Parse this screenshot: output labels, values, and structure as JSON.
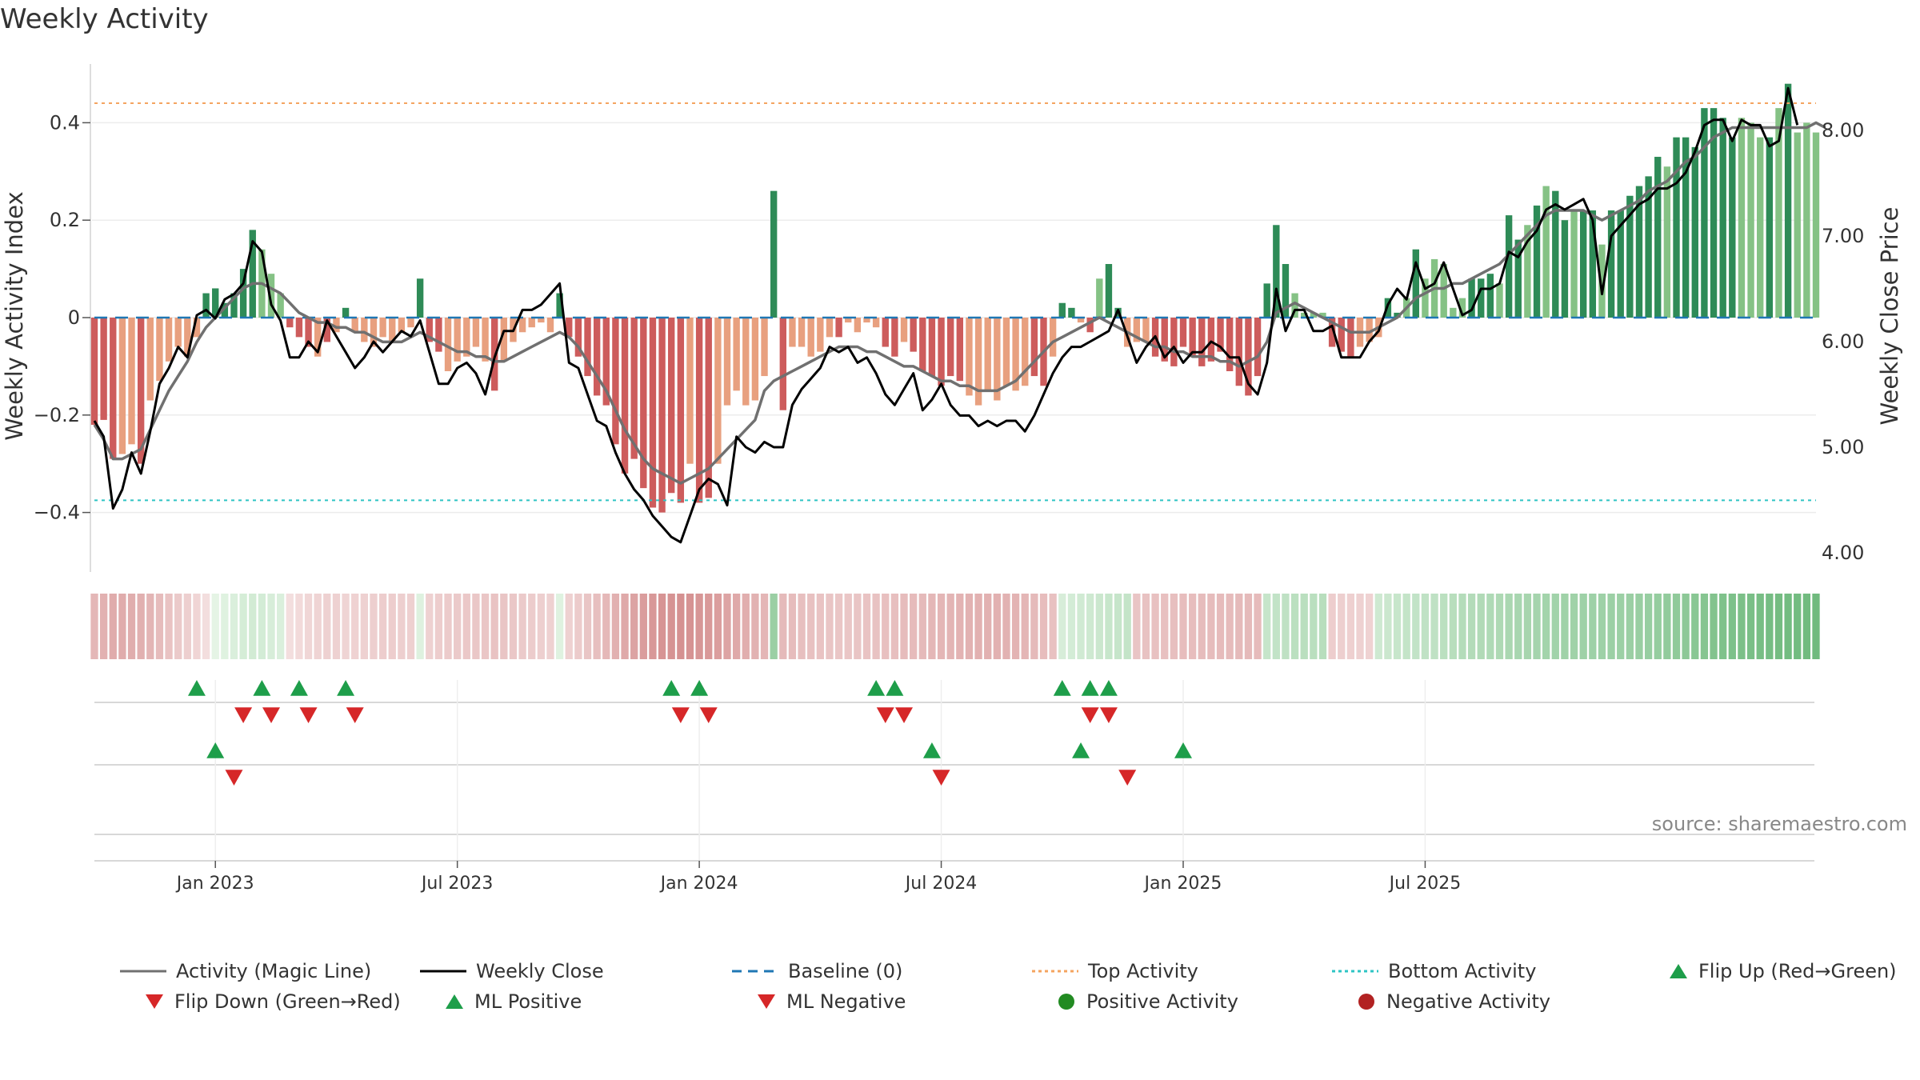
{
  "title": "Weekly Activity",
  "source": "source: sharemaestro.com",
  "colors": {
    "pos_strong": "#2e8b57",
    "pos_light": "#85c285",
    "neg_strong": "#cd5c5c",
    "neg_light": "#e8a07f",
    "magic_line": "#707070",
    "close_line": "#000000",
    "baseline": "#1f77b4",
    "top": "#f4a460",
    "bottom": "#2ec4c4",
    "up_marker": "#1e9e4a",
    "down_marker": "#d62728",
    "pos_dot": "#228b22",
    "neg_dot": "#b22222"
  },
  "chart_data": {
    "type": "bar",
    "title": "Weekly Activity",
    "ylabel": "Weekly Activity Index",
    "ylabel_right": "Weekly Close Price",
    "ylim": [
      -0.52,
      0.52
    ],
    "ylim_right": [
      3.85,
      8.6
    ],
    "yticks": [
      "0.4",
      "0.2",
      "0",
      "−0.2",
      "−0.4"
    ],
    "yticks_right": [
      "8.00",
      "7.00",
      "6.00",
      "5.00",
      "4.00"
    ],
    "top_activity": 0.44,
    "bottom_activity": -0.375,
    "baseline": 0,
    "x_labels": [
      "Jan 2023",
      "Jul 2023",
      "Jan 2024",
      "Jul 2024",
      "Jan 2025",
      "Jul 2025"
    ],
    "x_label_weeks": [
      13,
      39,
      65,
      91,
      117,
      143
    ],
    "activity": [
      -0.22,
      -0.21,
      -0.29,
      -0.28,
      -0.26,
      -0.3,
      -0.17,
      -0.13,
      -0.09,
      -0.06,
      -0.08,
      -0.04,
      0.05,
      0.06,
      0.03,
      0.05,
      0.1,
      0.18,
      0.14,
      0.09,
      0.05,
      -0.02,
      -0.04,
      -0.06,
      -0.08,
      -0.05,
      -0.03,
      0.02,
      -0.03,
      -0.05,
      -0.06,
      -0.04,
      -0.05,
      -0.03,
      -0.02,
      0.08,
      -0.05,
      -0.07,
      -0.11,
      -0.09,
      -0.08,
      -0.06,
      -0.09,
      -0.15,
      -0.09,
      -0.05,
      -0.03,
      -0.02,
      -0.01,
      -0.03,
      0.05,
      -0.04,
      -0.08,
      -0.12,
      -0.16,
      -0.18,
      -0.26,
      -0.32,
      -0.29,
      -0.35,
      -0.39,
      -0.4,
      -0.36,
      -0.38,
      -0.3,
      -0.38,
      -0.37,
      -0.3,
      -0.18,
      -0.15,
      -0.18,
      -0.17,
      -0.12,
      0.26,
      -0.19,
      -0.06,
      -0.06,
      -0.08,
      -0.07,
      -0.04,
      -0.04,
      -0.01,
      -0.03,
      -0.01,
      -0.02,
      -0.06,
      -0.08,
      -0.05,
      -0.07,
      -0.11,
      -0.12,
      -0.14,
      -0.12,
      -0.13,
      -0.16,
      -0.18,
      -0.15,
      -0.17,
      -0.14,
      -0.15,
      -0.14,
      -0.12,
      -0.14,
      -0.08,
      0.03,
      0.02,
      -0.01,
      -0.03,
      0.08,
      0.11,
      0.02,
      -0.06,
      -0.05,
      -0.05,
      -0.08,
      -0.09,
      -0.1,
      -0.06,
      -0.08,
      -0.1,
      -0.09,
      -0.07,
      -0.11,
      -0.14,
      -0.16,
      -0.12,
      0.07,
      0.19,
      0.11,
      0.05,
      0.01,
      0.01,
      0.01,
      -0.06,
      -0.07,
      -0.08,
      -0.06,
      -0.05,
      -0.04,
      0.04,
      0.01,
      0.04,
      0.14,
      0.08,
      0.12,
      0.11,
      0.02,
      0.04,
      0.08,
      0.08,
      0.09,
      0.07,
      0.21,
      0.16,
      0.19,
      0.23,
      0.27,
      0.26,
      0.2,
      0.22,
      0.22,
      0.22,
      0.15,
      0.22,
      0.22,
      0.25,
      0.27,
      0.29,
      0.33,
      0.31,
      0.37,
      0.37,
      0.35,
      0.43,
      0.43,
      0.41,
      0.37,
      0.41,
      0.4,
      0.37,
      0.37,
      0.43,
      0.48,
      0.38,
      0.4,
      0.38
    ],
    "strength": [
      1,
      1,
      1,
      0,
      0,
      1,
      0,
      0,
      0,
      0,
      0,
      0,
      1,
      1,
      1,
      1,
      1,
      1,
      0,
      0,
      0,
      1,
      1,
      1,
      0,
      1,
      0,
      1,
      0,
      0,
      0,
      0,
      0,
      0,
      0,
      1,
      1,
      1,
      0,
      0,
      0,
      0,
      0,
      1,
      0,
      0,
      0,
      0,
      0,
      0,
      1,
      1,
      1,
      1,
      1,
      1,
      1,
      1,
      1,
      1,
      1,
      1,
      1,
      1,
      0,
      1,
      1,
      0,
      0,
      0,
      0,
      0,
      0,
      1,
      1,
      0,
      0,
      0,
      0,
      0,
      1,
      0,
      0,
      0,
      0,
      1,
      1,
      0,
      1,
      1,
      1,
      1,
      1,
      1,
      0,
      0,
      0,
      0,
      0,
      0,
      0,
      1,
      1,
      0,
      1,
      1,
      0,
      1,
      0,
      1,
      1,
      0,
      0,
      0,
      1,
      1,
      1,
      1,
      1,
      1,
      1,
      1,
      1,
      1,
      1,
      1,
      1,
      1,
      1,
      0,
      0,
      0,
      0,
      1,
      1,
      1,
      0,
      0,
      0,
      1,
      1,
      0,
      1,
      0,
      0,
      0,
      0,
      0,
      1,
      1,
      1,
      0,
      1,
      1,
      0,
      1,
      0,
      1,
      1,
      0,
      1,
      1,
      0,
      1,
      1,
      1,
      1,
      1,
      1,
      0,
      1,
      1,
      1,
      1,
      1,
      1,
      1,
      0,
      0,
      0,
      1,
      0,
      1,
      0,
      0
    ],
    "magic_line": [
      -0.22,
      -0.25,
      -0.29,
      -0.29,
      -0.28,
      -0.27,
      -0.23,
      -0.19,
      -0.15,
      -0.12,
      -0.09,
      -0.05,
      -0.02,
      0.0,
      0.02,
      0.04,
      0.06,
      0.07,
      0.07,
      0.06,
      0.05,
      0.03,
      0.01,
      0.0,
      -0.01,
      -0.01,
      -0.02,
      -0.02,
      -0.03,
      -0.03,
      -0.04,
      -0.05,
      -0.05,
      -0.05,
      -0.04,
      -0.03,
      -0.04,
      -0.05,
      -0.06,
      -0.07,
      -0.07,
      -0.08,
      -0.08,
      -0.09,
      -0.09,
      -0.08,
      -0.07,
      -0.06,
      -0.05,
      -0.04,
      -0.03,
      -0.04,
      -0.06,
      -0.09,
      -0.12,
      -0.15,
      -0.19,
      -0.23,
      -0.26,
      -0.29,
      -0.31,
      -0.32,
      -0.33,
      -0.34,
      -0.33,
      -0.32,
      -0.31,
      -0.29,
      -0.27,
      -0.25,
      -0.23,
      -0.21,
      -0.15,
      -0.13,
      -0.12,
      -0.11,
      -0.1,
      -0.09,
      -0.08,
      -0.07,
      -0.06,
      -0.06,
      -0.06,
      -0.07,
      -0.07,
      -0.08,
      -0.09,
      -0.1,
      -0.1,
      -0.11,
      -0.12,
      -0.13,
      -0.13,
      -0.14,
      -0.14,
      -0.15,
      -0.15,
      -0.15,
      -0.14,
      -0.13,
      -0.11,
      -0.09,
      -0.07,
      -0.05,
      -0.04,
      -0.03,
      -0.02,
      -0.01,
      0.0,
      -0.01,
      -0.02,
      -0.03,
      -0.04,
      -0.05,
      -0.06,
      -0.06,
      -0.07,
      -0.07,
      -0.08,
      -0.08,
      -0.08,
      -0.09,
      -0.09,
      -0.1,
      -0.09,
      -0.08,
      -0.05,
      0.01,
      0.02,
      0.03,
      0.02,
      0.01,
      0.0,
      -0.01,
      -0.02,
      -0.03,
      -0.03,
      -0.03,
      -0.02,
      -0.01,
      0.0,
      0.02,
      0.04,
      0.05,
      0.06,
      0.06,
      0.07,
      0.07,
      0.08,
      0.09,
      0.1,
      0.11,
      0.13,
      0.15,
      0.17,
      0.19,
      0.21,
      0.22,
      0.22,
      0.22,
      0.22,
      0.21,
      0.2,
      0.21,
      0.22,
      0.23,
      0.24,
      0.26,
      0.27,
      0.28,
      0.3,
      0.32,
      0.33,
      0.35,
      0.37,
      0.38,
      0.39,
      0.39,
      0.39,
      0.39,
      0.39,
      0.39,
      0.39,
      0.39,
      0.39,
      0.4,
      0.39
    ],
    "weekly_close": [
      5.25,
      5.1,
      4.42,
      4.6,
      4.95,
      4.75,
      5.15,
      5.6,
      5.75,
      5.95,
      5.85,
      6.25,
      6.3,
      6.22,
      6.4,
      6.45,
      6.55,
      6.95,
      6.85,
      6.35,
      6.2,
      5.85,
      5.85,
      6.0,
      5.9,
      6.2,
      6.05,
      5.9,
      5.75,
      5.85,
      6.0,
      5.9,
      6.0,
      6.1,
      6.05,
      6.2,
      5.9,
      5.6,
      5.6,
      5.75,
      5.8,
      5.7,
      5.5,
      5.85,
      6.1,
      6.1,
      6.3,
      6.3,
      6.35,
      6.45,
      6.55,
      5.8,
      5.75,
      5.5,
      5.25,
      5.2,
      4.95,
      4.75,
      4.6,
      4.5,
      4.35,
      4.25,
      4.15,
      4.1,
      4.35,
      4.6,
      4.7,
      4.65,
      4.45,
      5.1,
      5.0,
      4.95,
      5.05,
      5.0,
      5.0,
      5.4,
      5.55,
      5.65,
      5.75,
      5.95,
      5.9,
      5.95,
      5.8,
      5.85,
      5.7,
      5.5,
      5.4,
      5.55,
      5.7,
      5.35,
      5.45,
      5.6,
      5.4,
      5.3,
      5.3,
      5.2,
      5.25,
      5.2,
      5.25,
      5.25,
      5.15,
      5.3,
      5.5,
      5.7,
      5.85,
      5.95,
      5.95,
      6.0,
      6.05,
      6.1,
      6.3,
      6.05,
      5.8,
      5.95,
      6.05,
      5.85,
      5.95,
      5.8,
      5.9,
      5.9,
      6.0,
      5.95,
      5.85,
      5.85,
      5.6,
      5.5,
      5.8,
      6.5,
      6.1,
      6.3,
      6.3,
      6.1,
      6.1,
      6.15,
      5.85,
      5.85,
      5.85,
      6.0,
      6.1,
      6.35,
      6.5,
      6.4,
      6.75,
      6.5,
      6.55,
      6.75,
      6.5,
      6.25,
      6.3,
      6.5,
      6.5,
      6.55,
      6.85,
      6.8,
      6.95,
      7.05,
      7.25,
      7.3,
      7.25,
      7.3,
      7.35,
      7.15,
      6.45,
      7.0,
      7.1,
      7.2,
      7.3,
      7.35,
      7.45,
      7.45,
      7.5,
      7.6,
      7.8,
      8.05,
      8.1,
      8.1,
      7.9,
      8.1,
      8.05,
      8.05,
      7.85,
      7.9,
      8.4,
      8.05
    ],
    "heat": [
      -0.33,
      -0.38,
      -0.42,
      -0.42,
      -0.41,
      -0.39,
      -0.35,
      -0.29,
      -0.23,
      -0.18,
      -0.14,
      -0.09,
      -0.02,
      0.02,
      0.05,
      0.08,
      0.11,
      0.13,
      0.12,
      0.1,
      0.08,
      -0.02,
      -0.05,
      -0.08,
      -0.1,
      -0.12,
      -0.12,
      -0.1,
      -0.11,
      -0.12,
      -0.14,
      -0.15,
      -0.15,
      -0.14,
      -0.13,
      0.06,
      -0.12,
      -0.15,
      -0.17,
      -0.18,
      -0.19,
      -0.2,
      -0.21,
      -0.23,
      -0.22,
      -0.2,
      -0.18,
      -0.16,
      -0.14,
      -0.12,
      0.05,
      -0.12,
      -0.17,
      -0.22,
      -0.27,
      -0.32,
      -0.38,
      -0.44,
      -0.49,
      -0.54,
      -0.58,
      -0.61,
      -0.62,
      -0.64,
      -0.62,
      -0.6,
      -0.57,
      -0.53,
      -0.48,
      -0.44,
      -0.4,
      -0.37,
      -0.34,
      0.45,
      -0.31,
      -0.29,
      -0.27,
      -0.25,
      -0.23,
      -0.22,
      -0.21,
      -0.21,
      -0.22,
      -0.23,
      -0.24,
      -0.26,
      -0.27,
      -0.29,
      -0.3,
      -0.31,
      -0.33,
      -0.34,
      -0.35,
      -0.36,
      -0.37,
      -0.38,
      -0.38,
      -0.38,
      -0.37,
      -0.36,
      -0.34,
      -0.31,
      -0.28,
      -0.25,
      0.1,
      0.12,
      0.14,
      0.15,
      0.17,
      0.19,
      0.2,
      0.21,
      -0.22,
      -0.24,
      -0.25,
      -0.26,
      -0.27,
      -0.28,
      -0.28,
      -0.29,
      -0.29,
      -0.3,
      -0.3,
      -0.31,
      -0.31,
      -0.3,
      0.2,
      0.22,
      0.24,
      0.26,
      0.27,
      0.27,
      0.28,
      -0.15,
      -0.14,
      -0.13,
      -0.12,
      -0.11,
      0.15,
      0.17,
      0.19,
      0.21,
      0.22,
      0.23,
      0.24,
      0.26,
      0.28,
      0.3,
      0.31,
      0.32,
      0.33,
      0.34,
      0.36,
      0.37,
      0.38,
      0.39,
      0.4,
      0.41,
      0.42,
      0.42,
      0.43,
      0.43,
      0.43,
      0.44,
      0.44,
      0.45,
      0.46,
      0.47,
      0.48,
      0.5,
      0.51,
      0.53,
      0.55,
      0.57,
      0.59,
      0.61,
      0.62,
      0.63,
      0.64,
      0.65,
      0.66,
      0.67,
      0.68,
      0.68,
      0.69,
      0.7
    ],
    "flip_up_weeks": [
      11,
      18,
      22,
      27,
      62,
      65,
      84,
      86,
      104,
      107,
      109
    ],
    "flip_down_weeks": [
      16,
      19,
      23,
      28,
      63,
      66,
      85,
      87,
      107,
      109
    ],
    "ml_positive_weeks": [
      13,
      90,
      106,
      117
    ],
    "ml_negative_weeks": [
      15,
      91,
      111
    ],
    "legend": [
      {
        "label": "Activity (Magic Line)",
        "kind": "line",
        "color": "#707070"
      },
      {
        "label": "Weekly Close",
        "kind": "line",
        "color": "#000000"
      },
      {
        "label": "Baseline (0)",
        "kind": "dashed",
        "color": "#1f77b4"
      },
      {
        "label": "Top Activity",
        "kind": "dotted",
        "color": "#f4a460"
      },
      {
        "label": "Bottom Activity",
        "kind": "dotted",
        "color": "#2ec4c4"
      },
      {
        "label": "Flip Up (Red→Green)",
        "kind": "tri-up",
        "color": "#1e9e4a"
      },
      {
        "label": "Flip Down (Green→Red)",
        "kind": "tri-down",
        "color": "#d62728"
      },
      {
        "label": "ML Positive",
        "kind": "tri-up",
        "color": "#1e9e4a"
      },
      {
        "label": "ML Negative",
        "kind": "tri-down",
        "color": "#d62728"
      },
      {
        "label": "Positive Activity",
        "kind": "dot",
        "color": "#228b22"
      },
      {
        "label": "Negative Activity",
        "kind": "dot",
        "color": "#b22222"
      }
    ]
  }
}
